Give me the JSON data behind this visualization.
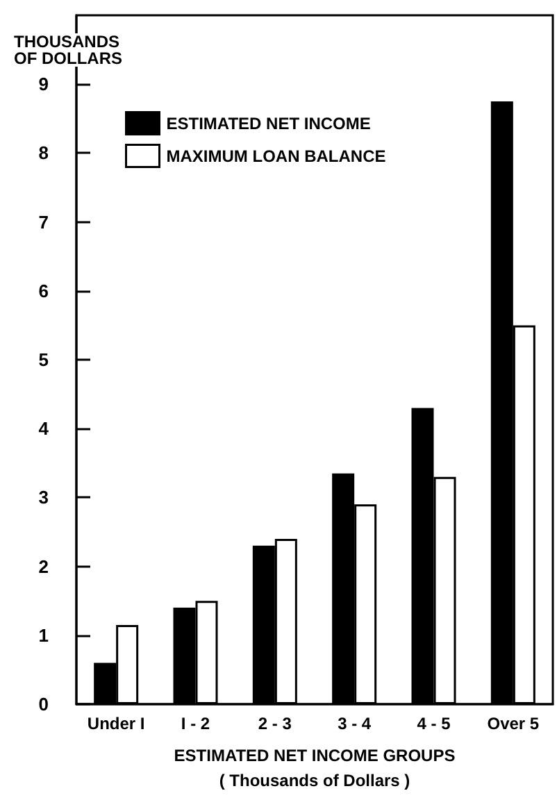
{
  "chart_data": {
    "type": "bar",
    "ylabel": "THOUSANDS\nOF DOLLARS",
    "xlabel": "ESTIMATED NET INCOME GROUPS\n( Thousands of Dollars )",
    "categories": [
      "Under I",
      "I - 2",
      "2 - 3",
      "3 - 4",
      "4 - 5",
      "Over 5"
    ],
    "series": [
      {
        "name": "ESTIMATED NET INCOME",
        "color": "#000000",
        "values": [
          0.6,
          1.4,
          2.3,
          3.35,
          4.3,
          8.75
        ]
      },
      {
        "name": "MAXIMUM LOAN BALANCE",
        "color": "#ffffff",
        "values": [
          1.15,
          1.5,
          2.4,
          2.9,
          3.3,
          5.5
        ]
      }
    ],
    "ylim": [
      0,
      10
    ],
    "yticks": [
      0,
      1,
      2,
      3,
      4,
      5,
      6,
      7,
      8,
      9
    ],
    "grid": false,
    "legend": "top left"
  }
}
